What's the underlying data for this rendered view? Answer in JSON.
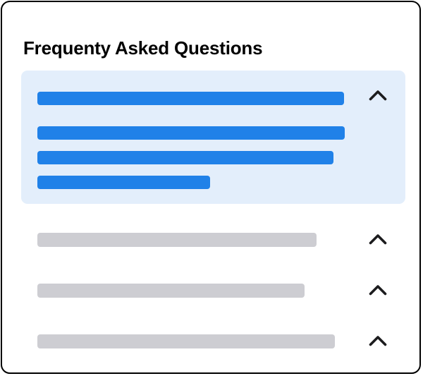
{
  "page": {
    "title": "Frequenty Asked Questions"
  },
  "colors": {
    "accent_blue": "#2081E8",
    "expanded_panel_bg": "#E3EEFB",
    "skeleton_gray": "#CDCDD2",
    "chevron": "#1C1C1E",
    "card_border": "#000000",
    "card_bg": "#FFFFFF"
  },
  "faq": {
    "items": [
      {
        "state": "expanded",
        "icon": "chevron-up-icon",
        "question_bar_width": 435,
        "answer_bar_widths": [
          436,
          420,
          245
        ]
      },
      {
        "state": "collapsed",
        "icon": "chevron-up-icon",
        "question_bar_width": 396
      },
      {
        "state": "collapsed",
        "icon": "chevron-up-icon",
        "question_bar_width": 379
      },
      {
        "state": "collapsed",
        "icon": "chevron-up-icon",
        "question_bar_width": 422
      }
    ]
  }
}
